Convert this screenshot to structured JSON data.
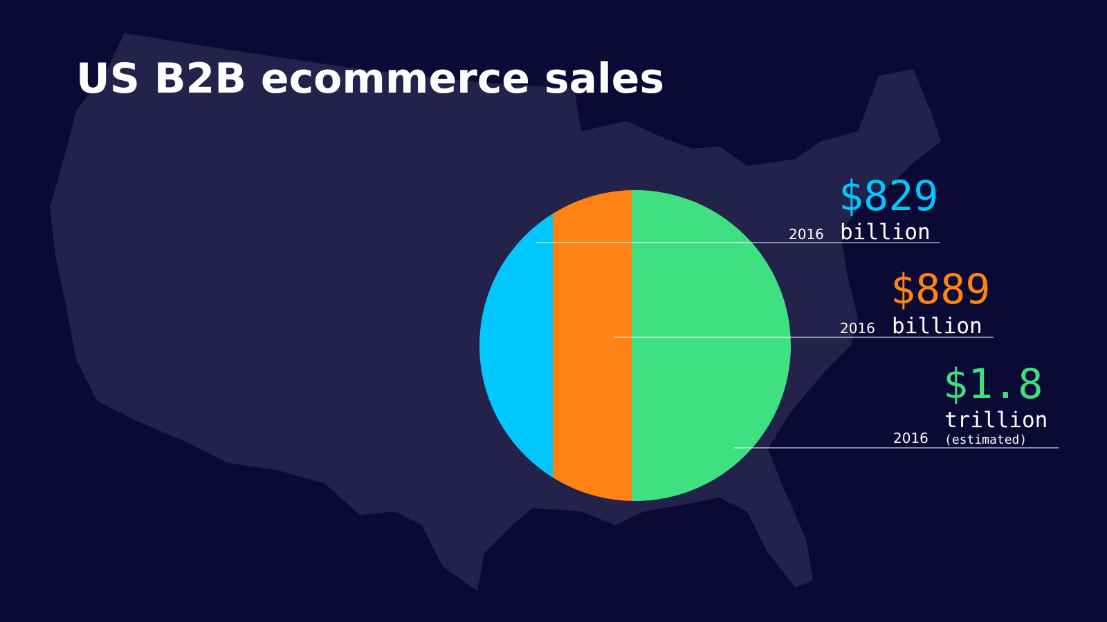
{
  "title": "US B2B ecommerce sales",
  "items": [
    {
      "amount": "$829",
      "unit": "billion",
      "year": "2016",
      "color": "#00c8ff"
    },
    {
      "amount": "$889",
      "unit": "billion",
      "year": "2016",
      "color": "#ff8214"
    },
    {
      "amount": "$1.8",
      "unit": "trillion",
      "note": "(estimated)",
      "year": "2016",
      "color": "#3ee081"
    }
  ]
}
